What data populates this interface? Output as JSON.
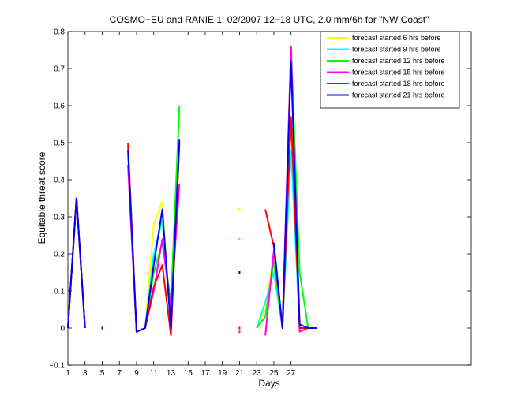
{
  "chart_data": {
    "type": "line",
    "title": "COSMO−EU and RANIE 1: 02/2007 12−18 UTC, 2.0 mm/6h for \"NW Coast\"",
    "xlabel": "Days",
    "ylabel": "Equitable threat score",
    "xlim": [
      1,
      48
    ],
    "ylim": [
      -0.1,
      0.8
    ],
    "xticks": [
      "1",
      "3",
      "5",
      "7",
      "9",
      "11",
      "13",
      "15",
      "17",
      "19",
      "21",
      "23",
      "25",
      "27"
    ],
    "yticks": [
      "−0.1",
      "0",
      "0.1",
      "0.2",
      "0.3",
      "0.4",
      "0.5",
      "0.6",
      "0.7",
      "0.8"
    ],
    "legend_position": "top-right",
    "series": [
      {
        "name": "forecast started 6 hrs before",
        "color": "#ffff00",
        "points": [
          [
            1,
            0
          ],
          [
            2,
            0.35
          ],
          [
            3,
            0
          ],
          [
            5,
            0
          ],
          [
            8,
            0.49
          ],
          [
            9,
            -0.01
          ],
          [
            10,
            0
          ],
          [
            11,
            0.28
          ],
          [
            12,
            0.34
          ],
          [
            13,
            0
          ],
          [
            14,
            0.5
          ],
          [
            21,
            0.32
          ],
          [
            23,
            0
          ],
          [
            24,
            0.05
          ],
          [
            25,
            0.2
          ],
          [
            26,
            0
          ],
          [
            27,
            0.55
          ],
          [
            28,
            0
          ],
          [
            29,
            0
          ],
          [
            30,
            0
          ]
        ]
      },
      {
        "name": "forecast started 9 hrs before",
        "color": "#00ffff",
        "points": [
          [
            1,
            0
          ],
          [
            2,
            0.35
          ],
          [
            3,
            0
          ],
          [
            5,
            0
          ],
          [
            8,
            0.49
          ],
          [
            9,
            -0.01
          ],
          [
            10,
            0
          ],
          [
            11,
            0.2
          ],
          [
            12,
            0.29
          ],
          [
            13,
            0
          ],
          [
            14,
            0.5
          ],
          [
            21,
            0.24
          ],
          [
            23,
            0
          ],
          [
            24,
            0.07
          ],
          [
            25,
            0.15
          ],
          [
            26,
            0
          ],
          [
            27,
            0.48
          ],
          [
            28,
            0
          ],
          [
            29,
            0
          ],
          [
            30,
            0
          ]
        ]
      },
      {
        "name": "forecast started 12 hrs before",
        "color": "#00ff00",
        "points": [
          [
            1,
            0
          ],
          [
            2,
            0.35
          ],
          [
            3,
            0
          ],
          [
            5,
            0
          ],
          [
            8,
            0.44
          ],
          [
            9,
            -0.01
          ],
          [
            10,
            0
          ],
          [
            11,
            0.15
          ],
          [
            12,
            0.23
          ],
          [
            13,
            0.07
          ],
          [
            14,
            0.6
          ],
          [
            21,
            0.15
          ],
          [
            23,
            0
          ],
          [
            24,
            0.03
          ],
          [
            25,
            0.18
          ],
          [
            26,
            0
          ],
          [
            27,
            0.76
          ],
          [
            28,
            0.15
          ],
          [
            29,
            0
          ],
          [
            30,
            0
          ]
        ]
      },
      {
        "name": "forecast started 15 hrs before",
        "color": "#ff00ff",
        "points": [
          [
            1,
            0
          ],
          [
            2,
            0.35
          ],
          [
            3,
            0
          ],
          [
            5,
            0
          ],
          [
            8,
            0.44
          ],
          [
            9,
            -0.01
          ],
          [
            10,
            0
          ],
          [
            11,
            0.1
          ],
          [
            12,
            0.24
          ],
          [
            13,
            0.05
          ],
          [
            14,
            0.39
          ],
          [
            21,
            -0.01
          ],
          [
            24,
            -0.02
          ],
          [
            25,
            0.21
          ],
          [
            26,
            0
          ],
          [
            27,
            0.76
          ],
          [
            28,
            -0.01
          ],
          [
            29,
            0
          ],
          [
            30,
            0
          ]
        ]
      },
      {
        "name": "forecast started 18 hrs before",
        "color": "#ff0000",
        "points": [
          [
            1,
            0
          ],
          [
            2,
            0.35
          ],
          [
            3,
            0
          ],
          [
            5,
            0
          ],
          [
            8,
            0.5
          ],
          [
            9,
            -0.01
          ],
          [
            10,
            0
          ],
          [
            11,
            0.11
          ],
          [
            12,
            0.17
          ],
          [
            13,
            -0.02
          ],
          [
            14,
            0.5
          ],
          [
            21,
            0
          ],
          [
            24,
            0.32
          ],
          [
            25,
            0.22
          ],
          [
            26,
            0
          ],
          [
            27,
            0.57
          ],
          [
            28,
            0
          ],
          [
            29,
            0
          ],
          [
            30,
            0
          ]
        ]
      },
      {
        "name": "forecast started 21 hrs before",
        "color": "#0000ff",
        "points": [
          [
            1,
            0
          ],
          [
            2,
            0.35
          ],
          [
            3,
            0
          ],
          [
            5,
            0
          ],
          [
            8,
            0.48
          ],
          [
            9,
            -0.01
          ],
          [
            10,
            0
          ],
          [
            11,
            0.17
          ],
          [
            12,
            0.32
          ],
          [
            13,
            0
          ],
          [
            14,
            0.51
          ],
          [
            21,
            0.15
          ],
          [
            25,
            0.23
          ],
          [
            26,
            0
          ],
          [
            27,
            0.72
          ],
          [
            28,
            0.01
          ],
          [
            29,
            0
          ],
          [
            30,
            0
          ]
        ]
      }
    ]
  }
}
